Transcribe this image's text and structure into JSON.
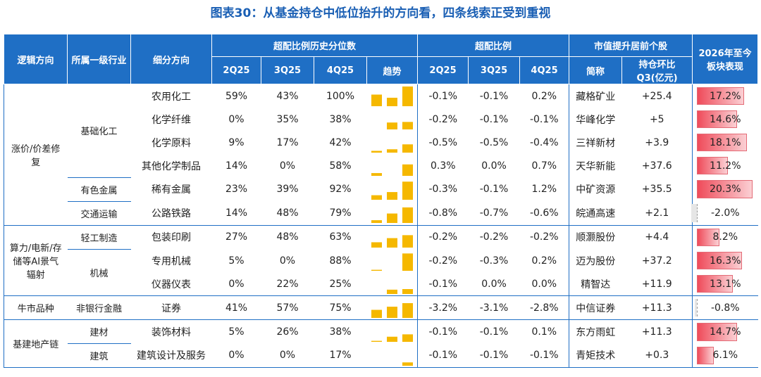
{
  "title": "图表30：从基金持仓中低位抬升的方向看，四条线索正受到重视",
  "header": {
    "logic": "逻辑方向",
    "industry": "所属一级行业",
    "sub": "细分方向",
    "pct_group": "超配比例历史分位数",
    "ow_group": "超配比例",
    "stock_group": "市值提升居前个股",
    "perf": "2026年至今板块表现",
    "pct_cols": [
      "2Q25",
      "3Q25",
      "4Q25"
    ],
    "trend": "趋势",
    "ow_cols": [
      "2Q25",
      "3Q25",
      "4Q25"
    ],
    "stock": "简称",
    "change": "持仓环比Q3(亿元)"
  },
  "groups": [
    {
      "name": "涨价/价差修复",
      "industries": [
        {
          "name": "基础化工",
          "rows": [
            {
              "sub": "农用化工",
              "pct": {
                "values": [
                  59,
                  43,
                  100
                ],
                "value_labels": [
                  "59%",
                  "43%",
                  "100%"
                ]
              },
              "ow": [
                "-0.1%",
                "-0.1%",
                "0.2%"
              ],
              "stock": "藏格矿业",
              "change": "+25.4",
              "perf": {
                "value": 17.2,
                "label": "17.2%"
              }
            },
            {
              "sub": "化学纤维",
              "pct": {
                "values": [
                  0,
                  35,
                  38
                ],
                "value_labels": [
                  "0%",
                  "35%",
                  "38%"
                ]
              },
              "ow": [
                "-0.2%",
                "-0.1%",
                "-0.1%"
              ],
              "stock": "华峰化学",
              "change": "+5",
              "perf": {
                "value": 14.6,
                "label": "14.6%"
              }
            },
            {
              "sub": "化学原料",
              "pct": {
                "values": [
                  9,
                  17,
                  42
                ],
                "value_labels": [
                  "9%",
                  "17%",
                  "42%"
                ]
              },
              "ow": [
                "-0.5%",
                "-0.5%",
                "-0.4%"
              ],
              "stock": "三祥新材",
              "change": "+3.9",
              "perf": {
                "value": 18.1,
                "label": "18.1%"
              }
            },
            {
              "sub": "其他化学制品",
              "pct": {
                "values": [
                  14,
                  0,
                  58
                ],
                "value_labels": [
                  "14%",
                  "0%",
                  "58%"
                ]
              },
              "ow": [
                "0.3%",
                "0.0%",
                "0.7%"
              ],
              "stock": "天华新能",
              "change": "+37.6",
              "perf": {
                "value": 11.2,
                "label": "11.2%"
              }
            }
          ]
        },
        {
          "name": "有色金属",
          "rows": [
            {
              "sub": "稀有金属",
              "pct": {
                "values": [
                  23,
                  39,
                  92
                ],
                "value_labels": [
                  "23%",
                  "39%",
                  "92%"
                ]
              },
              "ow": [
                "-0.3%",
                "-0.1%",
                "1.2%"
              ],
              "stock": "中矿资源",
              "change": "+35.5",
              "perf": {
                "value": 20.3,
                "label": "20.3%"
              }
            }
          ]
        },
        {
          "name": "交通运输",
          "rows": [
            {
              "sub": "公路铁路",
              "pct": {
                "values": [
                  14,
                  48,
                  79
                ],
                "value_labels": [
                  "14%",
                  "48%",
                  "79%"
                ]
              },
              "ow": [
                "-0.8%",
                "-0.7%",
                "-0.6%"
              ],
              "stock": "皖通高速",
              "change": "+2.1",
              "perf": {
                "value": -2.0,
                "label": "-2.0%"
              }
            }
          ]
        }
      ]
    },
    {
      "name": "算力/电新/存储等AI景气辐射",
      "industries": [
        {
          "name": "轻工制造",
          "rows": [
            {
              "sub": "包装印刷",
              "pct": {
                "values": [
                  27,
                  48,
                  63
                ],
                "value_labels": [
                  "27%",
                  "48%",
                  "63%"
                ]
              },
              "ow": [
                "-0.2%",
                "-0.2%",
                "-0.2%"
              ],
              "stock": "顺灏股份",
              "change": "+4.4",
              "perf": {
                "value": 8.2,
                "label": "8.2%"
              }
            }
          ]
        },
        {
          "name": "机械",
          "rows": [
            {
              "sub": "专用机械",
              "pct": {
                "values": [
                  5,
                  0,
                  88
                ],
                "value_labels": [
                  "5%",
                  "0%",
                  "88%"
                ]
              },
              "ow": [
                "-0.2%",
                "-0.3%",
                "0.2%"
              ],
              "stock": "迈为股份",
              "change": "+37.2",
              "perf": {
                "value": 16.3,
                "label": "16.3%"
              }
            },
            {
              "sub": "仪器仪表",
              "pct": {
                "values": [
                  0,
                  22,
                  25
                ],
                "value_labels": [
                  "0%",
                  "22%",
                  "25%"
                ]
              },
              "ow": [
                "-0.1%",
                "0.0%",
                "0.0%"
              ],
              "stock": "精智达",
              "change": "+11.9",
              "perf": {
                "value": 13.1,
                "label": "13.1%"
              }
            }
          ]
        }
      ]
    },
    {
      "name": "牛市品种",
      "industries": [
        {
          "name": "非银行金融",
          "rows": [
            {
              "sub": "证券",
              "pct": {
                "values": [
                  41,
                  57,
                  75
                ],
                "value_labels": [
                  "41%",
                  "57%",
                  "75%"
                ]
              },
              "ow": [
                "-3.2%",
                "-3.1%",
                "-2.8%"
              ],
              "stock": "中信证券",
              "change": "+11.3",
              "perf": {
                "value": -0.8,
                "label": "-0.8%"
              }
            }
          ]
        }
      ]
    },
    {
      "name": "基建地产链",
      "industries": [
        {
          "name": "建材",
          "rows": [
            {
              "sub": "装饰材料",
              "pct": {
                "values": [
                  5,
                  26,
                  38
                ],
                "value_labels": [
                  "5%",
                  "26%",
                  "38%"
                ]
              },
              "ow": [
                "-0.1%",
                "-0.1%",
                "0.1%"
              ],
              "stock": "东方雨虹",
              "change": "+11.3",
              "perf": {
                "value": 14.7,
                "label": "14.7%"
              }
            }
          ]
        },
        {
          "name": "建筑",
          "rows": [
            {
              "sub": "建筑设计及服务",
              "pct": {
                "values": [
                  0,
                  0,
                  17
                ],
                "value_labels": [
                  "0%",
                  "0%",
                  "17%"
                ]
              },
              "ow": [
                "-0.1%",
                "-0.1%",
                "-0.1%"
              ],
              "stock": "青矩技术",
              "change": "+0.3",
              "perf": {
                "value": 6.1,
                "label": "6.1%"
              }
            }
          ]
        }
      ]
    }
  ]
}
